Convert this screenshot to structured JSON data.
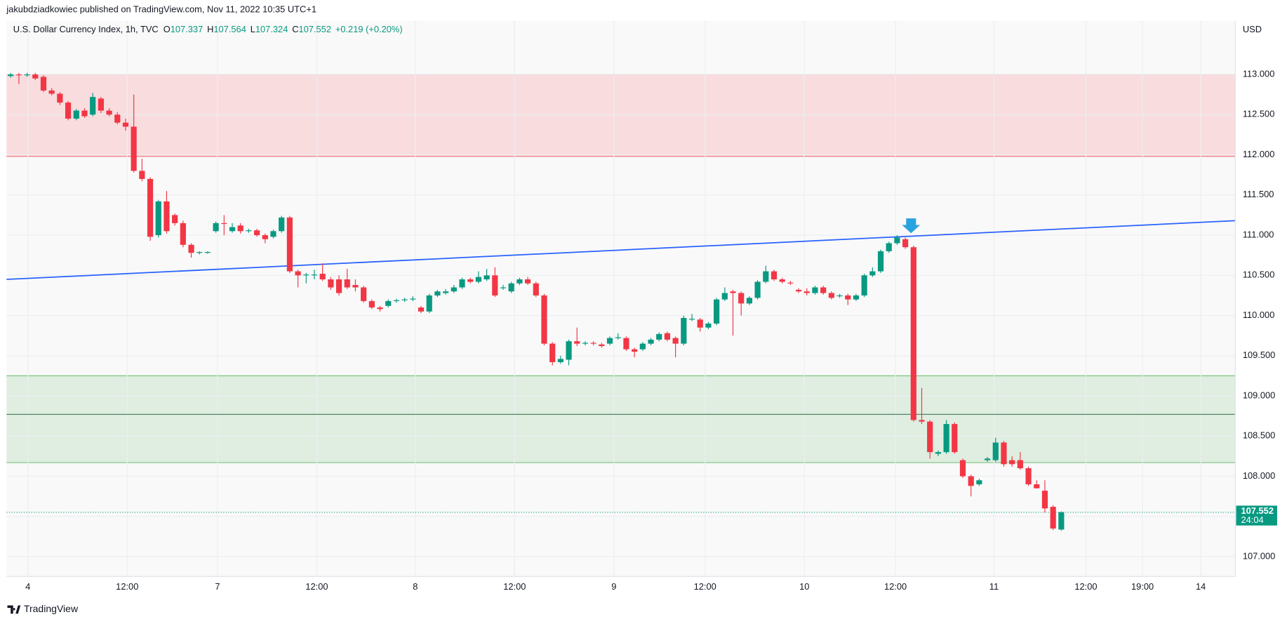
{
  "header": {
    "publisher": "jakubdziadkowiec published on TradingView.com, Nov 11, 2022 10:35 UTC+1"
  },
  "footer": {
    "brand": "TradingView"
  },
  "chart_data": {
    "type": "candlestick",
    "title": "U.S. Dollar Currency Index, 1h, TVC",
    "ohlc_legend": [
      {
        "key": "O",
        "value": "107.337"
      },
      {
        "key": "H",
        "value": "107.564"
      },
      {
        "key": "L",
        "value": "107.324"
      },
      {
        "key": "C",
        "value": "107.552"
      }
    ],
    "change": "+0.219 (+0.20%)",
    "currency": "USD",
    "up_color": "#089981",
    "down_color": "#f23645",
    "open": [
      112.98,
      113.0,
      112.99,
      113.0,
      112.97,
      112.8,
      112.76,
      112.65,
      112.45,
      112.55,
      112.5,
      112.7,
      112.55,
      112.5,
      112.4,
      112.35,
      111.8,
      111.7,
      111.0,
      111.42,
      111.25,
      111.15,
      110.88,
      110.78,
      110.79,
      111.05,
      111.15,
      111.05,
      111.12,
      111.05,
      111.06,
      111.0,
      110.98,
      111.05,
      111.22,
      110.55,
      110.5,
      110.5,
      110.52,
      110.45,
      110.45,
      110.45,
      110.38,
      110.35,
      110.18,
      110.1,
      110.12,
      110.18,
      110.19,
      110.2,
      110.1,
      110.05,
      110.25,
      110.28,
      110.3,
      110.35,
      110.45,
      110.42,
      110.45,
      110.5,
      110.34,
      110.3,
      110.4,
      110.45,
      110.4,
      110.25,
      109.65,
      109.42,
      109.45,
      109.68,
      109.65,
      109.66,
      109.64,
      109.65,
      109.72,
      109.72,
      109.58,
      109.58,
      109.65,
      109.7,
      109.78,
      109.72,
      109.65,
      109.95,
      109.95,
      109.85,
      109.9,
      110.2,
      110.3,
      110.28,
      110.15,
      110.22,
      110.42,
      110.55,
      110.45,
      110.41,
      110.32,
      110.3,
      110.28,
      110.35,
      110.28,
      110.24,
      110.25,
      110.2,
      110.25,
      110.5,
      110.55,
      110.8,
      110.9,
      110.95,
      110.85,
      108.7,
      108.68,
      108.28,
      108.3,
      108.65,
      108.2,
      108.0,
      107.9,
      108.2,
      108.2,
      108.42,
      108.2,
      108.2,
      108.1,
      107.9,
      107.82,
      107.62,
      107.337
    ],
    "high": [
      113.02,
      113.02,
      113.02,
      113.02,
      112.99,
      112.83,
      112.78,
      112.67,
      112.57,
      112.58,
      112.77,
      112.72,
      112.58,
      112.53,
      112.45,
      112.75,
      111.95,
      111.72,
      111.44,
      111.55,
      111.27,
      111.18,
      110.9,
      110.8,
      110.8,
      111.17,
      111.25,
      111.15,
      111.15,
      111.08,
      111.08,
      111.02,
      111.07,
      111.24,
      111.24,
      110.57,
      110.53,
      110.57,
      110.65,
      110.48,
      110.5,
      110.58,
      110.45,
      110.37,
      110.2,
      110.12,
      110.2,
      110.21,
      110.22,
      110.24,
      110.12,
      110.27,
      110.32,
      110.33,
      110.38,
      110.47,
      110.47,
      110.55,
      110.58,
      110.6,
      110.38,
      110.42,
      110.47,
      110.48,
      110.42,
      110.27,
      109.67,
      109.5,
      109.7,
      109.85,
      109.68,
      109.68,
      109.66,
      109.74,
      109.78,
      109.74,
      109.6,
      109.67,
      109.72,
      109.79,
      109.8,
      109.74,
      110.0,
      110.02,
      109.97,
      109.92,
      110.22,
      110.35,
      110.32,
      110.3,
      110.24,
      110.44,
      110.62,
      110.57,
      110.47,
      110.43,
      110.34,
      110.34,
      110.37,
      110.37,
      110.3,
      110.27,
      110.27,
      110.27,
      110.52,
      110.6,
      110.82,
      110.92,
      111.0,
      110.97,
      110.87,
      109.1,
      108.7,
      108.32,
      108.7,
      108.67,
      108.22,
      108.02,
      107.97,
      108.24,
      108.48,
      108.44,
      108.25,
      108.3,
      108.12,
      107.95,
      107.95,
      107.64,
      107.564
    ],
    "low": [
      112.96,
      112.88,
      112.97,
      112.93,
      112.78,
      112.74,
      112.62,
      112.43,
      112.43,
      112.46,
      112.48,
      112.52,
      112.48,
      112.38,
      112.3,
      111.78,
      111.67,
      110.93,
      110.97,
      111.02,
      111.12,
      110.85,
      110.72,
      110.76,
      110.77,
      111.03,
      111.0,
      111.03,
      111.02,
      111.03,
      110.98,
      110.9,
      110.96,
      111.03,
      110.53,
      110.35,
      110.4,
      110.45,
      110.43,
      110.32,
      110.25,
      110.33,
      110.3,
      110.16,
      110.08,
      110.05,
      110.1,
      110.16,
      110.17,
      110.18,
      110.03,
      110.03,
      110.23,
      110.26,
      110.28,
      110.33,
      110.4,
      110.4,
      110.43,
      110.23,
      110.32,
      110.28,
      110.38,
      110.38,
      110.23,
      109.63,
      109.38,
      109.4,
      109.38,
      109.62,
      109.63,
      109.63,
      109.6,
      109.63,
      109.7,
      109.56,
      109.48,
      109.56,
      109.63,
      109.68,
      109.68,
      109.48,
      109.63,
      109.93,
      109.8,
      109.83,
      109.88,
      110.18,
      109.75,
      110.0,
      110.13,
      110.2,
      110.4,
      110.43,
      110.4,
      110.38,
      110.28,
      110.25,
      110.26,
      110.26,
      110.2,
      110.22,
      110.13,
      110.18,
      110.23,
      110.48,
      110.53,
      110.78,
      110.88,
      110.83,
      108.68,
      108.65,
      108.22,
      108.25,
      108.28,
      108.28,
      107.98,
      107.75,
      107.88,
      108.18,
      108.18,
      108.12,
      108.12,
      108.08,
      107.88,
      107.85,
      107.55,
      107.33,
      107.324
    ],
    "close": [
      113.0,
      112.99,
      113.0,
      112.95,
      112.8,
      112.76,
      112.65,
      112.45,
      112.55,
      112.48,
      112.72,
      112.55,
      112.5,
      112.4,
      112.35,
      111.8,
      111.7,
      110.98,
      111.42,
      111.05,
      111.15,
      110.88,
      110.78,
      110.79,
      110.79,
      111.15,
      111.14,
      111.1,
      111.05,
      111.06,
      111.0,
      110.95,
      111.05,
      111.22,
      110.55,
      110.5,
      110.51,
      110.51,
      110.45,
      110.35,
      110.28,
      110.35,
      110.35,
      110.18,
      110.1,
      110.08,
      110.18,
      110.19,
      110.2,
      110.21,
      110.05,
      110.25,
      110.3,
      110.3,
      110.35,
      110.45,
      110.42,
      110.48,
      110.5,
      110.25,
      110.35,
      110.4,
      110.45,
      110.4,
      110.25,
      109.65,
      109.42,
      109.46,
      109.68,
      109.65,
      109.66,
      109.65,
      109.62,
      109.72,
      109.73,
      109.58,
      109.55,
      109.65,
      109.7,
      109.77,
      109.7,
      109.65,
      109.97,
      109.96,
      109.85,
      109.9,
      110.2,
      110.28,
      110.28,
      110.15,
      110.22,
      110.42,
      110.55,
      110.45,
      110.42,
      110.4,
      110.3,
      110.28,
      110.35,
      110.28,
      110.22,
      110.25,
      110.2,
      110.25,
      110.5,
      110.55,
      110.8,
      110.9,
      110.97,
      110.85,
      108.7,
      108.68,
      108.3,
      108.3,
      108.65,
      108.3,
      108.0,
      107.88,
      107.95,
      108.22,
      108.42,
      108.15,
      108.15,
      108.1,
      107.9,
      107.85,
      107.6,
      107.35,
      107.552
    ],
    "xlim": [
      -0.5,
      149.2
    ],
    "xticks": [
      {
        "value": 2.1,
        "label": "4"
      },
      {
        "value": 14.2,
        "label": "12:00"
      },
      {
        "value": 25.2,
        "label": "7"
      },
      {
        "value": 37.3,
        "label": "12:00"
      },
      {
        "value": 49.3,
        "label": "8"
      },
      {
        "value": 61.4,
        "label": "12:00"
      },
      {
        "value": 73.5,
        "label": "9"
      },
      {
        "value": 84.6,
        "label": "12:00"
      },
      {
        "value": 96.7,
        "label": "10"
      },
      {
        "value": 107.8,
        "label": "12:00"
      },
      {
        "value": 119.8,
        "label": "11"
      },
      {
        "value": 131,
        "label": "12:00"
      },
      {
        "value": 137.9,
        "label": "19:00"
      },
      {
        "value": 145,
        "label": "14"
      }
    ],
    "ylim": [
      106.753,
      113.669
    ],
    "yticks": [
      {
        "value": 107,
        "label": "107.000"
      },
      {
        "value": 107.5,
        "label": "107.500"
      },
      {
        "value": 108,
        "label": "108.000"
      },
      {
        "value": 108.5,
        "label": "108.500"
      },
      {
        "value": 109,
        "label": "109.000"
      },
      {
        "value": 109.5,
        "label": "109.500"
      },
      {
        "value": 110,
        "label": "110.000"
      },
      {
        "value": 110.5,
        "label": "110.500"
      },
      {
        "value": 111,
        "label": "111.000"
      },
      {
        "value": 111.5,
        "label": "111.500"
      },
      {
        "value": 112,
        "label": "112.000"
      },
      {
        "value": 112.5,
        "label": "112.500"
      },
      {
        "value": 113,
        "label": "113.000"
      }
    ],
    "grid": true,
    "zones": [
      {
        "top": 113.0,
        "bottom": 111.98,
        "color": "#f23645"
      },
      {
        "top": 109.25,
        "bottom": 108.17,
        "color": "#4caf50"
      }
    ],
    "hlines": [
      {
        "value": 108.77,
        "color": "#3d7a55"
      }
    ],
    "trendline": {
      "x": [
        -0.5,
        149.2
      ],
      "y": [
        110.45,
        111.18
      ],
      "color": "#2962ff"
    },
    "last_price": {
      "value": 107.552,
      "label": "107.552"
    },
    "countdown": "24:04"
  }
}
